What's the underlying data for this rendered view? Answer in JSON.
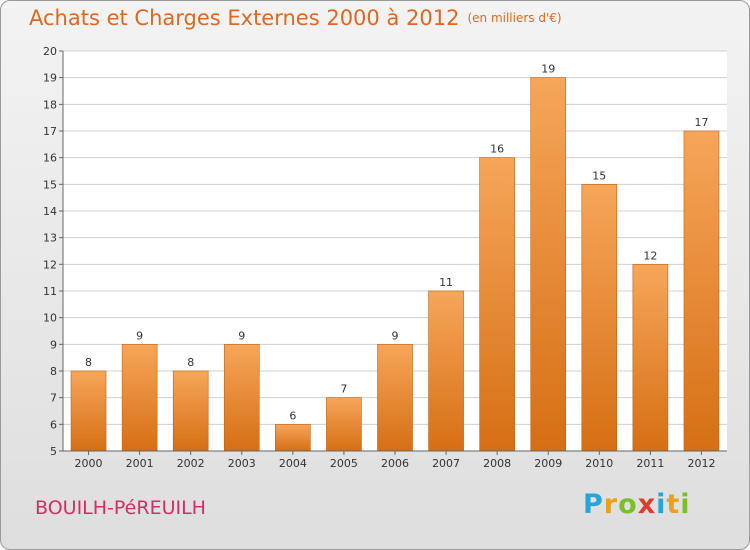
{
  "header": {
    "title": "Achats et Charges Externes 2000 à 2012",
    "unit": "(en milliers d'€)"
  },
  "footer": {
    "town": "BOUILH-PéREUILH",
    "logo_letters": [
      "P",
      "r",
      "o",
      "x",
      "i",
      "t",
      "i"
    ],
    "logo_colors": [
      "#2aa3d8",
      "#e8a21c",
      "#7cbf2a",
      "#e23a2a",
      "#2aa3d8",
      "#e8a21c",
      "#7cbf2a"
    ]
  },
  "colors": {
    "bar_top": "#f6a65a",
    "bar_bottom": "#d66f14",
    "bar_edge": "#c0620f",
    "grid": "#d0d0d0",
    "axis": "#666666"
  },
  "chart_data": {
    "type": "bar",
    "title": "Achats et Charges Externes 2000 à 2012",
    "subtitle": "(en milliers d'€)",
    "xlabel": "",
    "ylabel": "",
    "categories": [
      "2000",
      "2001",
      "2002",
      "2003",
      "2004",
      "2005",
      "2006",
      "2007",
      "2008",
      "2009",
      "2010",
      "2011",
      "2012"
    ],
    "values": [
      8,
      9,
      8,
      9,
      6,
      7,
      9,
      11,
      16,
      19,
      15,
      12,
      17
    ],
    "ylim": [
      5,
      20
    ],
    "yticks": [
      5,
      6,
      7,
      8,
      9,
      10,
      11,
      12,
      13,
      14,
      15,
      16,
      17,
      18,
      19,
      20
    ],
    "grid": true
  }
}
